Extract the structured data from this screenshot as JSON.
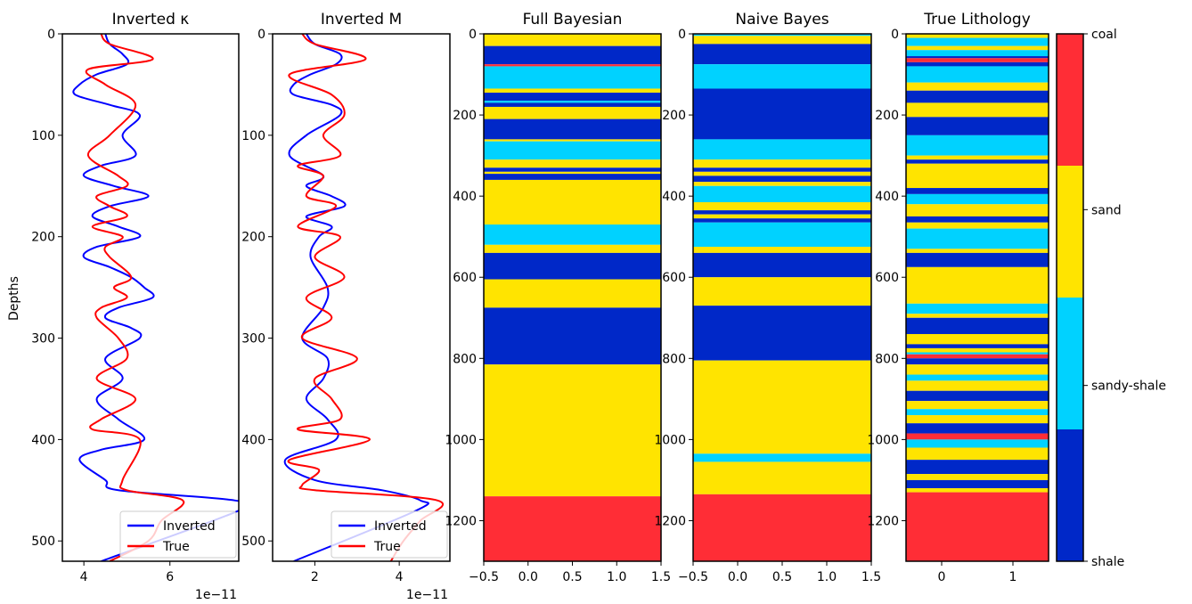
{
  "figure": {
    "ylabel": "Depths"
  },
  "chart_data": [
    {
      "type": "line",
      "title": "Inverted κ",
      "ylabel": "Depths",
      "offset_label": "1e−11",
      "xlim": [
        3.5,
        7.6
      ],
      "ylim": [
        520,
        0
      ],
      "xticks": [
        4,
        6
      ],
      "yticks": [
        0,
        100,
        200,
        300,
        400,
        500
      ],
      "legend": {
        "position": "lower-right",
        "entries": [
          "Inverted",
          "True"
        ]
      },
      "series": [
        {
          "name": "Inverted",
          "color": "#0000ff",
          "x": [
            4.5,
            4.6,
            4.9,
            5.0,
            4.3,
            3.9,
            3.8,
            4.6,
            5.3,
            4.9,
            5.2,
            4.4,
            4.0,
            4.7,
            5.5,
            4.6,
            4.2,
            4.8,
            5.3,
            4.3,
            4.0,
            4.6,
            5.1,
            5.4,
            5.6,
            4.8,
            4.5,
            5.1,
            5.3,
            4.5,
            4.9,
            4.3,
            4.8,
            5.4,
            4.4,
            3.9,
            4.5,
            4.8,
            7.5,
            7.6,
            4.4
          ],
          "y": [
            0,
            10,
            20,
            30,
            40,
            50,
            60,
            70,
            80,
            100,
            120,
            130,
            140,
            150,
            160,
            170,
            180,
            190,
            200,
            210,
            220,
            230,
            240,
            250,
            260,
            270,
            280,
            290,
            300,
            320,
            340,
            360,
            380,
            400,
            410,
            420,
            440,
            450,
            460,
            470,
            520
          ]
        },
        {
          "name": "True",
          "color": "#ff0000",
          "x": [
            4.4,
            4.6,
            5.6,
            4.1,
            4.5,
            5.2,
            4.6,
            4.1,
            4.8,
            5.0,
            4.3,
            4.6,
            5.0,
            4.2,
            4.9,
            4.5,
            4.6,
            5.1,
            4.7,
            5.0,
            4.4,
            4.3,
            4.8,
            5.0,
            4.3,
            5.2,
            4.4,
            4.2,
            5.3,
            4.9,
            5.0,
            6.3,
            5.8,
            5.5,
            4.6
          ],
          "y": [
            0,
            10,
            25,
            35,
            50,
            70,
            100,
            120,
            140,
            150,
            160,
            170,
            180,
            190,
            200,
            210,
            220,
            240,
            250,
            260,
            270,
            280,
            300,
            320,
            340,
            360,
            380,
            390,
            400,
            440,
            450,
            460,
            480,
            500,
            520
          ]
        }
      ]
    },
    {
      "type": "line",
      "title": "Inverted M",
      "offset_label": "1e−11",
      "xlim": [
        1.0,
        5.2
      ],
      "ylim": [
        520,
        0
      ],
      "xticks": [
        2,
        4
      ],
      "yticks": [
        0,
        100,
        200,
        300,
        400,
        500
      ],
      "legend": {
        "position": "lower-right",
        "entries": [
          "Inverted",
          "True"
        ]
      },
      "series": [
        {
          "name": "Inverted",
          "color": "#0000ff",
          "x": [
            1.8,
            2.0,
            2.6,
            2.5,
            1.9,
            1.5,
            1.5,
            2.4,
            2.6,
            1.8,
            1.4,
            2.2,
            1.8,
            2.4,
            2.7,
            1.8,
            2.4,
            2.1,
            1.9,
            2.3,
            2.2,
            1.7,
            2.3,
            2.2,
            1.8,
            2.3,
            2.5,
            1.3,
            2.0,
            3.6,
            4.5,
            4.4,
            1.5
          ],
          "y": [
            0,
            10,
            20,
            30,
            40,
            50,
            60,
            70,
            80,
            100,
            120,
            140,
            150,
            160,
            170,
            180,
            190,
            200,
            220,
            250,
            270,
            300,
            320,
            340,
            360,
            380,
            400,
            420,
            440,
            450,
            460,
            470,
            520
          ]
        },
        {
          "name": "True",
          "color": "#ff0000",
          "x": [
            1.7,
            2.0,
            3.2,
            1.4,
            2.4,
            2.7,
            2.2,
            2.6,
            1.6,
            2.2,
            1.8,
            2.5,
            1.6,
            2.6,
            2.0,
            2.7,
            1.8,
            2.4,
            1.7,
            3.0,
            2.0,
            2.4,
            2.6,
            1.6,
            3.3,
            1.4,
            2.1,
            1.7,
            2.0,
            4.9,
            4.5,
            4.1,
            3.8
          ],
          "y": [
            0,
            10,
            25,
            40,
            60,
            80,
            100,
            120,
            130,
            140,
            160,
            170,
            190,
            200,
            220,
            240,
            260,
            280,
            300,
            320,
            340,
            360,
            380,
            390,
            400,
            420,
            430,
            445,
            450,
            460,
            480,
            500,
            520
          ]
        }
      ]
    },
    {
      "type": "heatmap",
      "title": "Full Bayesian",
      "xlim": [
        -0.5,
        1.5
      ],
      "ylim": [
        1300,
        0
      ],
      "xticks": [
        "−0.5",
        "0.0",
        "0.5",
        "1.0",
        "1.5"
      ],
      "yticks": [
        0,
        200,
        400,
        600,
        800,
        1000,
        1200
      ],
      "layers": [
        {
          "top": 0,
          "bottom": 30,
          "class": "sand"
        },
        {
          "top": 30,
          "bottom": 75,
          "class": "shale"
        },
        {
          "top": 75,
          "bottom": 80,
          "class": "coal"
        },
        {
          "top": 80,
          "bottom": 135,
          "class": "sandy-shale"
        },
        {
          "top": 135,
          "bottom": 145,
          "class": "sand"
        },
        {
          "top": 145,
          "bottom": 165,
          "class": "shale"
        },
        {
          "top": 165,
          "bottom": 170,
          "class": "sandy-shale"
        },
        {
          "top": 170,
          "bottom": 180,
          "class": "shale"
        },
        {
          "top": 180,
          "bottom": 210,
          "class": "sand"
        },
        {
          "top": 210,
          "bottom": 260,
          "class": "shale"
        },
        {
          "top": 260,
          "bottom": 265,
          "class": "sand"
        },
        {
          "top": 265,
          "bottom": 310,
          "class": "sandy-shale"
        },
        {
          "top": 310,
          "bottom": 330,
          "class": "sand"
        },
        {
          "top": 330,
          "bottom": 340,
          "class": "shale"
        },
        {
          "top": 340,
          "bottom": 345,
          "class": "sand"
        },
        {
          "top": 345,
          "bottom": 360,
          "class": "shale"
        },
        {
          "top": 360,
          "bottom": 470,
          "class": "sand"
        },
        {
          "top": 470,
          "bottom": 520,
          "class": "sandy-shale"
        },
        {
          "top": 520,
          "bottom": 540,
          "class": "sand"
        },
        {
          "top": 540,
          "bottom": 605,
          "class": "shale"
        },
        {
          "top": 605,
          "bottom": 675,
          "class": "sand"
        },
        {
          "top": 675,
          "bottom": 815,
          "class": "shale"
        },
        {
          "top": 815,
          "bottom": 1140,
          "class": "sand"
        },
        {
          "top": 1140,
          "bottom": 1300,
          "class": "coal"
        }
      ]
    },
    {
      "type": "heatmap",
      "title": "Naive Bayes",
      "xlim": [
        -0.5,
        1.5
      ],
      "ylim": [
        1300,
        0
      ],
      "xticks": [
        "−0.5",
        "0.0",
        "0.5",
        "1.0",
        "1.5"
      ],
      "yticks": [
        0,
        200,
        400,
        600,
        800,
        1000,
        1200
      ],
      "layers": [
        {
          "top": 0,
          "bottom": 5,
          "class": "sandy-shale"
        },
        {
          "top": 5,
          "bottom": 25,
          "class": "sand"
        },
        {
          "top": 25,
          "bottom": 75,
          "class": "shale"
        },
        {
          "top": 75,
          "bottom": 135,
          "class": "sandy-shale"
        },
        {
          "top": 135,
          "bottom": 260,
          "class": "shale"
        },
        {
          "top": 260,
          "bottom": 310,
          "class": "sandy-shale"
        },
        {
          "top": 310,
          "bottom": 330,
          "class": "sand"
        },
        {
          "top": 330,
          "bottom": 340,
          "class": "shale"
        },
        {
          "top": 340,
          "bottom": 350,
          "class": "sand"
        },
        {
          "top": 350,
          "bottom": 365,
          "class": "shale"
        },
        {
          "top": 365,
          "bottom": 375,
          "class": "sand"
        },
        {
          "top": 375,
          "bottom": 415,
          "class": "sandy-shale"
        },
        {
          "top": 415,
          "bottom": 435,
          "class": "sand"
        },
        {
          "top": 435,
          "bottom": 445,
          "class": "shale"
        },
        {
          "top": 445,
          "bottom": 455,
          "class": "sand"
        },
        {
          "top": 455,
          "bottom": 465,
          "class": "shale"
        },
        {
          "top": 465,
          "bottom": 525,
          "class": "sandy-shale"
        },
        {
          "top": 525,
          "bottom": 540,
          "class": "sand"
        },
        {
          "top": 540,
          "bottom": 600,
          "class": "shale"
        },
        {
          "top": 600,
          "bottom": 670,
          "class": "sand"
        },
        {
          "top": 670,
          "bottom": 805,
          "class": "shale"
        },
        {
          "top": 805,
          "bottom": 1035,
          "class": "sand"
        },
        {
          "top": 1035,
          "bottom": 1055,
          "class": "sandy-shale"
        },
        {
          "top": 1055,
          "bottom": 1135,
          "class": "sand"
        },
        {
          "top": 1135,
          "bottom": 1300,
          "class": "coal"
        }
      ]
    },
    {
      "type": "heatmap",
      "title": "True Lithology",
      "xlim": [
        -0.5,
        1.5
      ],
      "ylim": [
        1300,
        0
      ],
      "xticks": [
        "0",
        "1"
      ],
      "xtick_values": [
        0,
        1
      ],
      "yticks": [
        0,
        200,
        400,
        600,
        800,
        1000,
        1200
      ],
      "layers": [
        {
          "top": 0,
          "bottom": 10,
          "class": "sand"
        },
        {
          "top": 10,
          "bottom": 30,
          "class": "sandy-shale"
        },
        {
          "top": 30,
          "bottom": 40,
          "class": "sand"
        },
        {
          "top": 40,
          "bottom": 55,
          "class": "sandy-shale"
        },
        {
          "top": 55,
          "bottom": 60,
          "class": "shale"
        },
        {
          "top": 60,
          "bottom": 70,
          "class": "coal"
        },
        {
          "top": 70,
          "bottom": 80,
          "class": "shale"
        },
        {
          "top": 80,
          "bottom": 120,
          "class": "sandy-shale"
        },
        {
          "top": 120,
          "bottom": 140,
          "class": "sand"
        },
        {
          "top": 140,
          "bottom": 170,
          "class": "shale"
        },
        {
          "top": 170,
          "bottom": 205,
          "class": "sand"
        },
        {
          "top": 205,
          "bottom": 250,
          "class": "shale"
        },
        {
          "top": 250,
          "bottom": 300,
          "class": "sandy-shale"
        },
        {
          "top": 300,
          "bottom": 310,
          "class": "sand"
        },
        {
          "top": 310,
          "bottom": 320,
          "class": "shale"
        },
        {
          "top": 320,
          "bottom": 380,
          "class": "sand"
        },
        {
          "top": 380,
          "bottom": 395,
          "class": "shale"
        },
        {
          "top": 395,
          "bottom": 420,
          "class": "sandy-shale"
        },
        {
          "top": 420,
          "bottom": 450,
          "class": "sand"
        },
        {
          "top": 450,
          "bottom": 465,
          "class": "shale"
        },
        {
          "top": 465,
          "bottom": 480,
          "class": "sand"
        },
        {
          "top": 480,
          "bottom": 530,
          "class": "sandy-shale"
        },
        {
          "top": 530,
          "bottom": 540,
          "class": "sand"
        },
        {
          "top": 540,
          "bottom": 575,
          "class": "shale"
        },
        {
          "top": 575,
          "bottom": 665,
          "class": "sand"
        },
        {
          "top": 665,
          "bottom": 690,
          "class": "sandy-shale"
        },
        {
          "top": 690,
          "bottom": 700,
          "class": "sand"
        },
        {
          "top": 700,
          "bottom": 740,
          "class": "shale"
        },
        {
          "top": 740,
          "bottom": 765,
          "class": "sand"
        },
        {
          "top": 765,
          "bottom": 775,
          "class": "shale"
        },
        {
          "top": 775,
          "bottom": 785,
          "class": "sand"
        },
        {
          "top": 785,
          "bottom": 790,
          "class": "sandy-shale"
        },
        {
          "top": 790,
          "bottom": 800,
          "class": "coal"
        },
        {
          "top": 800,
          "bottom": 815,
          "class": "shale"
        },
        {
          "top": 815,
          "bottom": 840,
          "class": "sand"
        },
        {
          "top": 840,
          "bottom": 855,
          "class": "sandy-shale"
        },
        {
          "top": 855,
          "bottom": 880,
          "class": "sand"
        },
        {
          "top": 880,
          "bottom": 905,
          "class": "shale"
        },
        {
          "top": 905,
          "bottom": 925,
          "class": "sand"
        },
        {
          "top": 925,
          "bottom": 940,
          "class": "sandy-shale"
        },
        {
          "top": 940,
          "bottom": 960,
          "class": "sand"
        },
        {
          "top": 960,
          "bottom": 985,
          "class": "shale"
        },
        {
          "top": 985,
          "bottom": 1000,
          "class": "coal"
        },
        {
          "top": 1000,
          "bottom": 1020,
          "class": "sandy-shale"
        },
        {
          "top": 1020,
          "bottom": 1050,
          "class": "sand"
        },
        {
          "top": 1050,
          "bottom": 1085,
          "class": "shale"
        },
        {
          "top": 1085,
          "bottom": 1100,
          "class": "sand"
        },
        {
          "top": 1100,
          "bottom": 1120,
          "class": "shale"
        },
        {
          "top": 1120,
          "bottom": 1130,
          "class": "sand"
        },
        {
          "top": 1130,
          "bottom": 1300,
          "class": "coal"
        }
      ]
    }
  ],
  "colorbar": {
    "classes": [
      "shale",
      "sandy-shale",
      "sand",
      "coal"
    ],
    "labels": [
      "shale",
      "sandy-shale",
      "sand",
      "coal"
    ],
    "colors": {
      "shale": "#0028c8",
      "sandy-shale": "#00d2ff",
      "sand": "#ffe400",
      "coal": "#ff2d36"
    }
  }
}
